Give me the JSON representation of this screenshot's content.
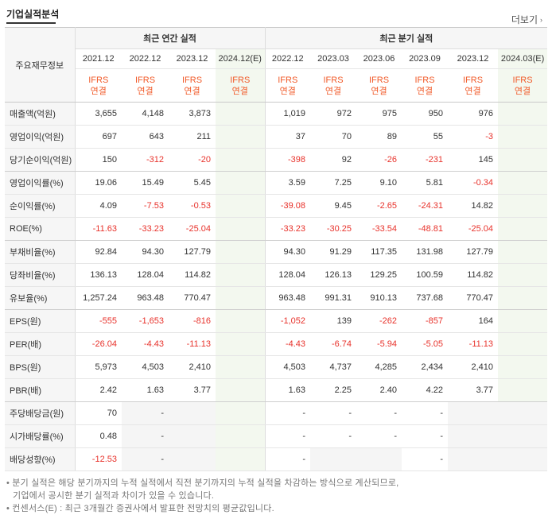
{
  "title": "기업실적분석",
  "more_label": "더보기",
  "header": {
    "row_header": "주요재무정보",
    "annual_group": "최근 연간 실적",
    "quarter_group": "최근 분기 실적",
    "annual_periods": [
      "2021.12",
      "2022.12",
      "2023.12",
      "2024.12(E)"
    ],
    "quarter_periods": [
      "2022.12",
      "2023.03",
      "2023.06",
      "2023.09",
      "2023.12",
      "2024.03(E)"
    ],
    "basis_top": "IFRS",
    "basis_bottom": "연결"
  },
  "rows": [
    {
      "label": "매출액(억원)",
      "values": [
        "3,655",
        "4,148",
        "3,873",
        "",
        "1,019",
        "972",
        "975",
        "950",
        "976",
        ""
      ]
    },
    {
      "label": "영업이익(억원)",
      "values": [
        "697",
        "643",
        "211",
        "",
        "37",
        "70",
        "89",
        "55",
        "-3",
        ""
      ]
    },
    {
      "label": "당기순이익(억원)",
      "values": [
        "150",
        "-312",
        "-20",
        "",
        "-398",
        "92",
        "-26",
        "-231",
        "145",
        ""
      ]
    },
    {
      "label": "영업이익률(%)",
      "values": [
        "19.06",
        "15.49",
        "5.45",
        "",
        "3.59",
        "7.25",
        "9.10",
        "5.81",
        "-0.34",
        ""
      ]
    },
    {
      "label": "순이익률(%)",
      "values": [
        "4.09",
        "-7.53",
        "-0.53",
        "",
        "-39.08",
        "9.45",
        "-2.65",
        "-24.31",
        "14.82",
        ""
      ]
    },
    {
      "label": "ROE(%)",
      "values": [
        "-11.63",
        "-33.23",
        "-25.04",
        "",
        "-33.23",
        "-30.25",
        "-33.54",
        "-48.81",
        "-25.04",
        ""
      ]
    },
    {
      "label": "부채비율(%)",
      "values": [
        "92.84",
        "94.30",
        "127.79",
        "",
        "94.30",
        "91.29",
        "117.35",
        "131.98",
        "127.79",
        ""
      ]
    },
    {
      "label": "당좌비율(%)",
      "values": [
        "136.13",
        "128.04",
        "114.82",
        "",
        "128.04",
        "126.13",
        "129.25",
        "100.59",
        "114.82",
        ""
      ]
    },
    {
      "label": "유보율(%)",
      "values": [
        "1,257.24",
        "963.48",
        "770.47",
        "",
        "963.48",
        "991.31",
        "910.13",
        "737.68",
        "770.47",
        ""
      ]
    },
    {
      "label": "EPS(원)",
      "values": [
        "-555",
        "-1,653",
        "-816",
        "",
        "-1,052",
        "139",
        "-262",
        "-857",
        "164",
        ""
      ]
    },
    {
      "label": "PER(배)",
      "values": [
        "-26.04",
        "-4.43",
        "-11.13",
        "",
        "-4.43",
        "-6.74",
        "-5.94",
        "-5.05",
        "-11.13",
        ""
      ]
    },
    {
      "label": "BPS(원)",
      "values": [
        "5,973",
        "4,503",
        "2,410",
        "",
        "4,503",
        "4,737",
        "4,285",
        "2,434",
        "2,410",
        ""
      ]
    },
    {
      "label": "PBR(배)",
      "values": [
        "2.42",
        "1.63",
        "3.77",
        "",
        "1.63",
        "2.25",
        "2.40",
        "4.22",
        "3.77",
        ""
      ]
    },
    {
      "label": "주당배당금(원)",
      "values": [
        "70",
        "-",
        "",
        "",
        "-",
        "-",
        "-",
        "-",
        "",
        ""
      ]
    },
    {
      "label": "시가배당률(%)",
      "values": [
        "0.48",
        "-",
        "",
        "",
        "-",
        "-",
        "-",
        "-",
        "",
        ""
      ]
    },
    {
      "label": "배당성향(%)",
      "values": [
        "-12.53",
        "-",
        "",
        "",
        "-",
        "",
        "",
        "-",
        "",
        ""
      ]
    }
  ],
  "notes": {
    "line1": "• 분기 실적은 해당 분기까지의 누적 실적에서 직전 분기까지의 누적 실적을 차감하는 방식으로 계산되므로,",
    "line2": "기업에서 공시한 분기 실적과 차이가 있을 수 있습니다.",
    "line3": "• 컨센서스(E) : 최근 3개월간 증권사에서 발표한 전망치의 평균값입니다."
  },
  "colors": {
    "negative": "#e8322b",
    "basis": "#f15a29",
    "estimate_bg": "#f3f8ef",
    "header_bg": "#f6f6f6"
  }
}
